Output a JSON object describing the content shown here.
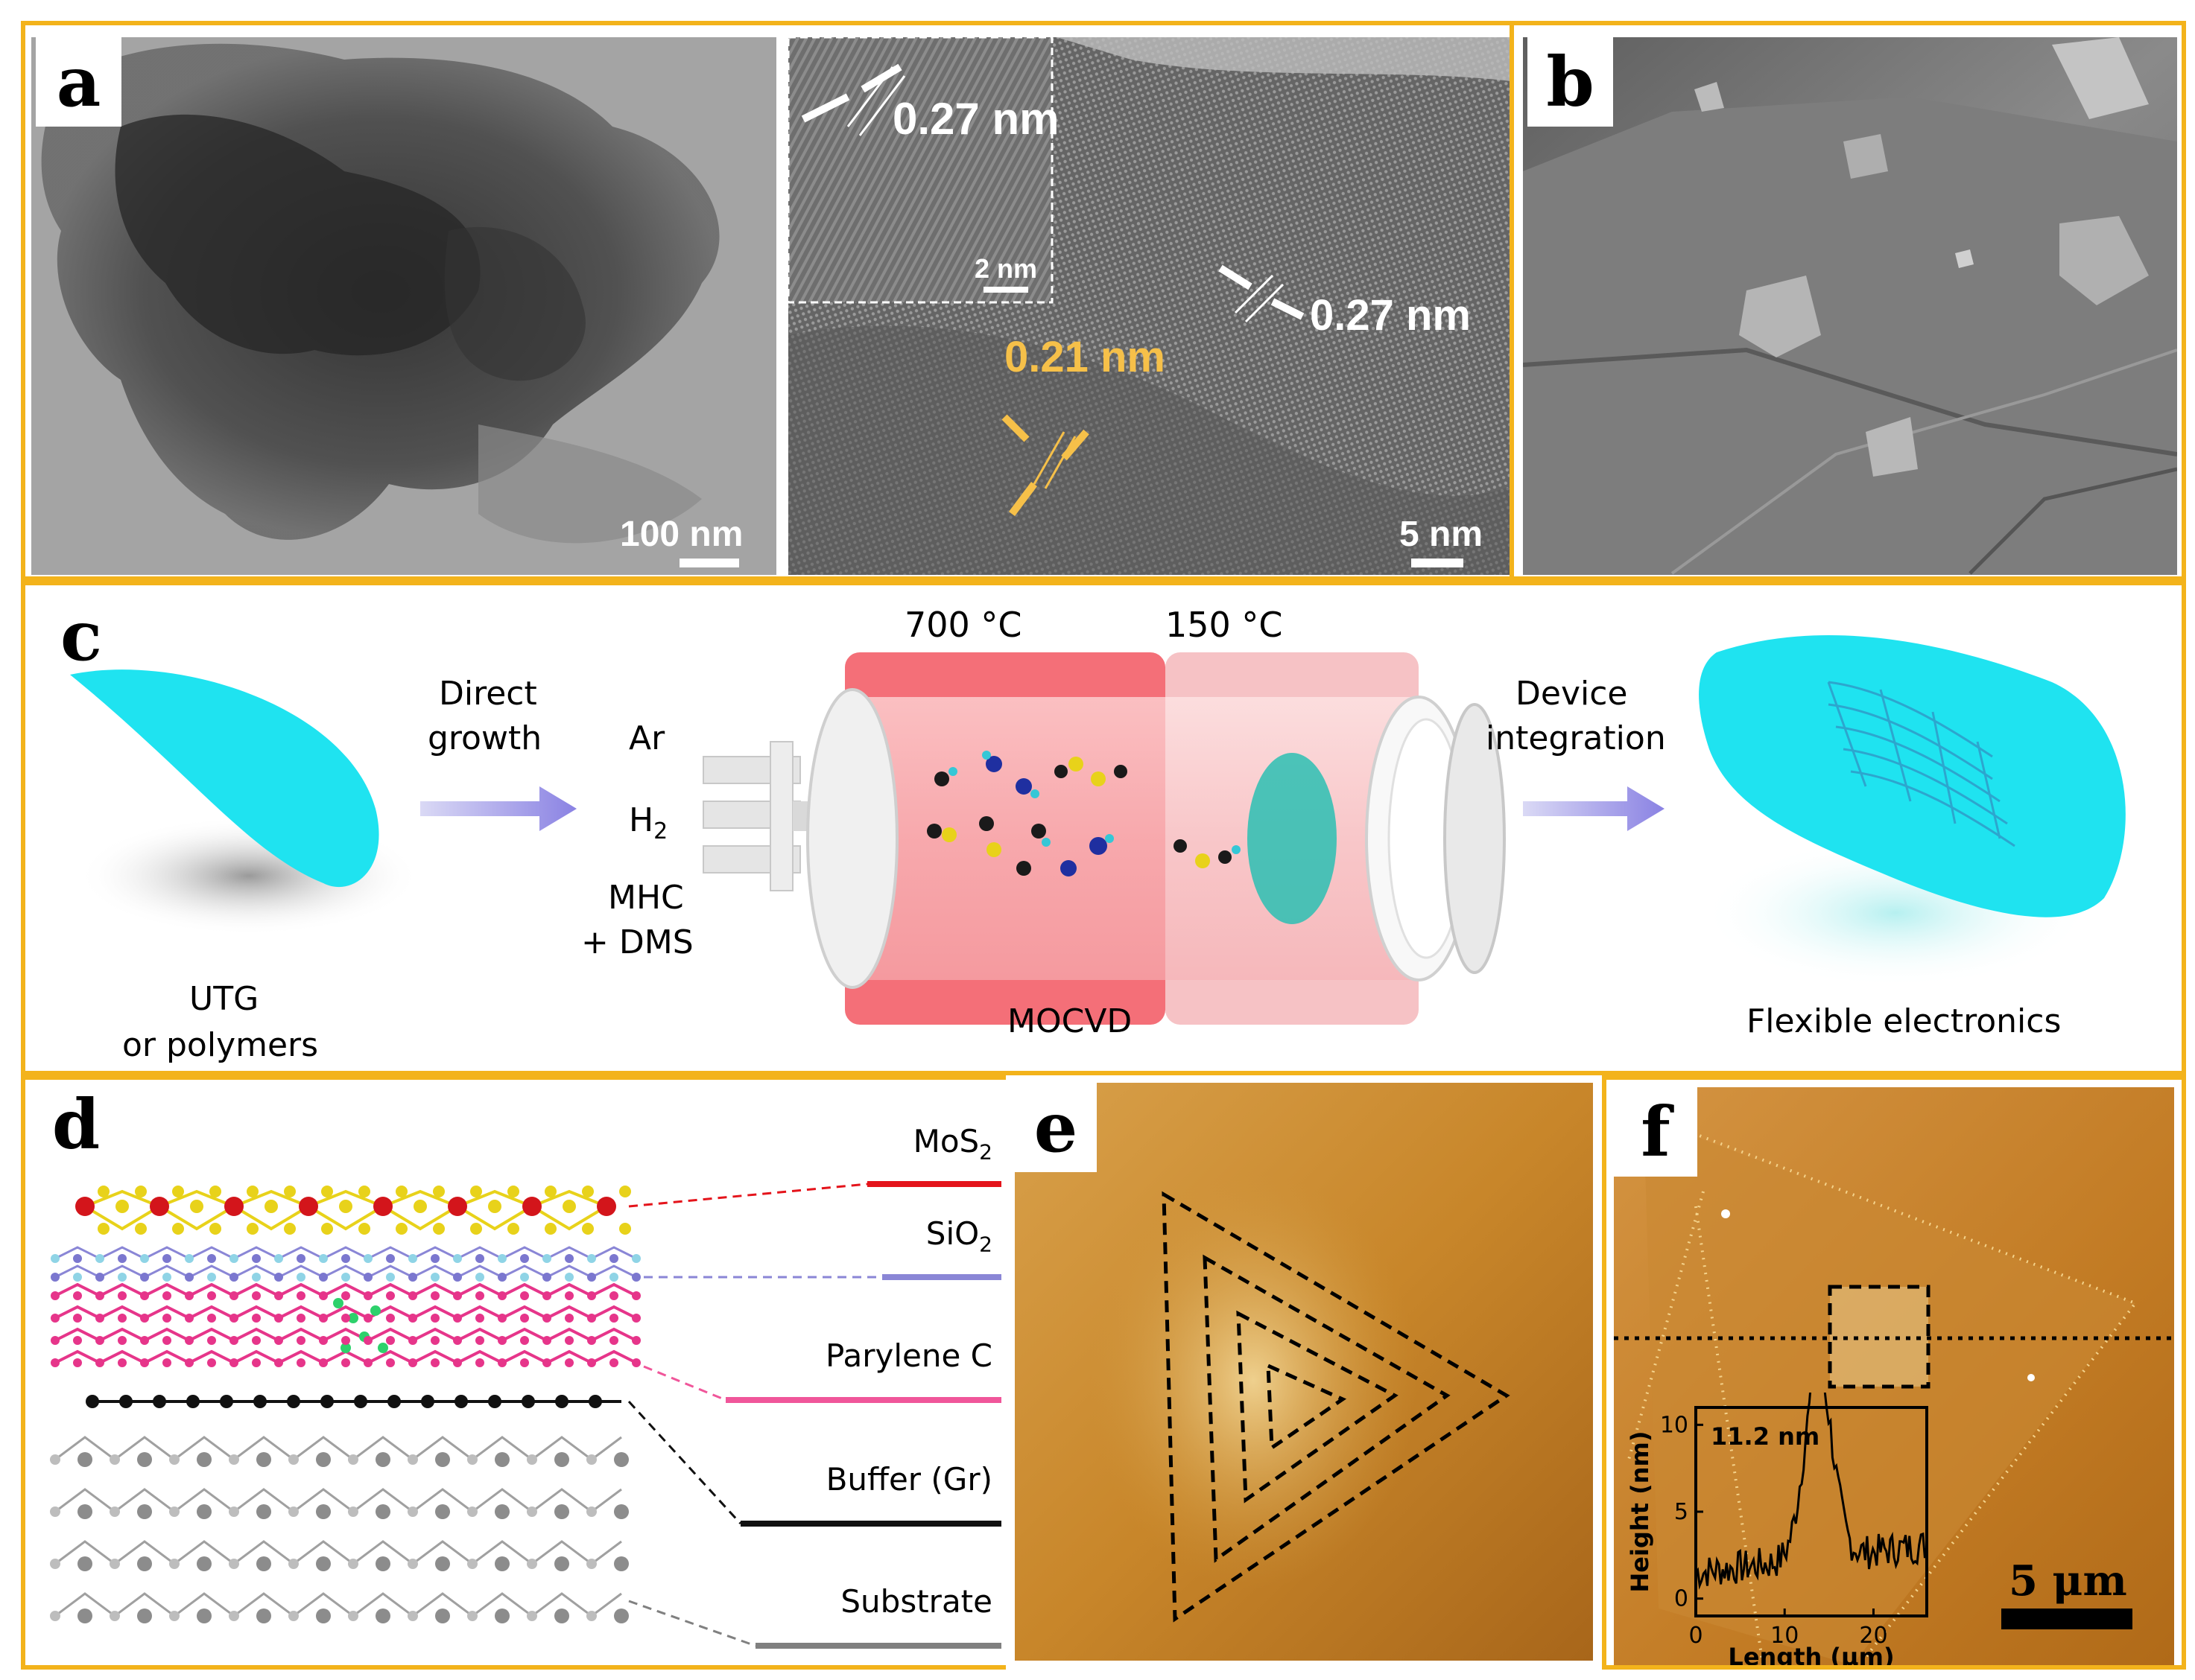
{
  "panel_a": {
    "letter": "a",
    "scale_left": "100 nm",
    "scale_right": "5 nm",
    "inset_scale": "2 nm",
    "spacing_1": "0.27 nm",
    "spacing_2": "0.27 nm",
    "spacing_3": "0.21 nm"
  },
  "panel_b": {
    "letter": "b"
  },
  "panel_c": {
    "letter": "c",
    "substrate_label_1": "UTG",
    "substrate_label_2": "or polymers",
    "step1_line1": "Direct",
    "step1_line2": "growth",
    "gas_ar": "Ar",
    "gas_h2": "H",
    "gas_h2_sub": "2",
    "gas_mhc": "MHC",
    "gas_dms": "+ DMS",
    "temp_hot": "700 °C",
    "temp_cold": "150 °C",
    "reactor_label": "MOCVD",
    "step2_line1": "Device",
    "step2_line2": "integration",
    "result_label": "Flexible electronics"
  },
  "panel_d": {
    "letter": "d",
    "layers": [
      {
        "name": "MoS",
        "sub": "2",
        "color": "#e4141b"
      },
      {
        "name": "SiO",
        "sub": "2",
        "color": "#8a86d6"
      },
      {
        "name": "Parylene C",
        "sub": "",
        "color": "#f0569a"
      },
      {
        "name": "Buffer (Gr)",
        "sub": "",
        "color": "#111111"
      },
      {
        "name": "Substrate",
        "sub": "",
        "color": "#808080"
      }
    ]
  },
  "panel_e": {
    "letter": "e"
  },
  "panel_f": {
    "letter": "f",
    "scale": "5 μm",
    "inset": {
      "annotation": "11.2 nm",
      "xlabel": "Length (μm)",
      "ylabel": "Height (nm)",
      "xticks": [
        "0",
        "10",
        "20"
      ],
      "yticks": [
        "0",
        "5",
        "10"
      ]
    }
  }
}
